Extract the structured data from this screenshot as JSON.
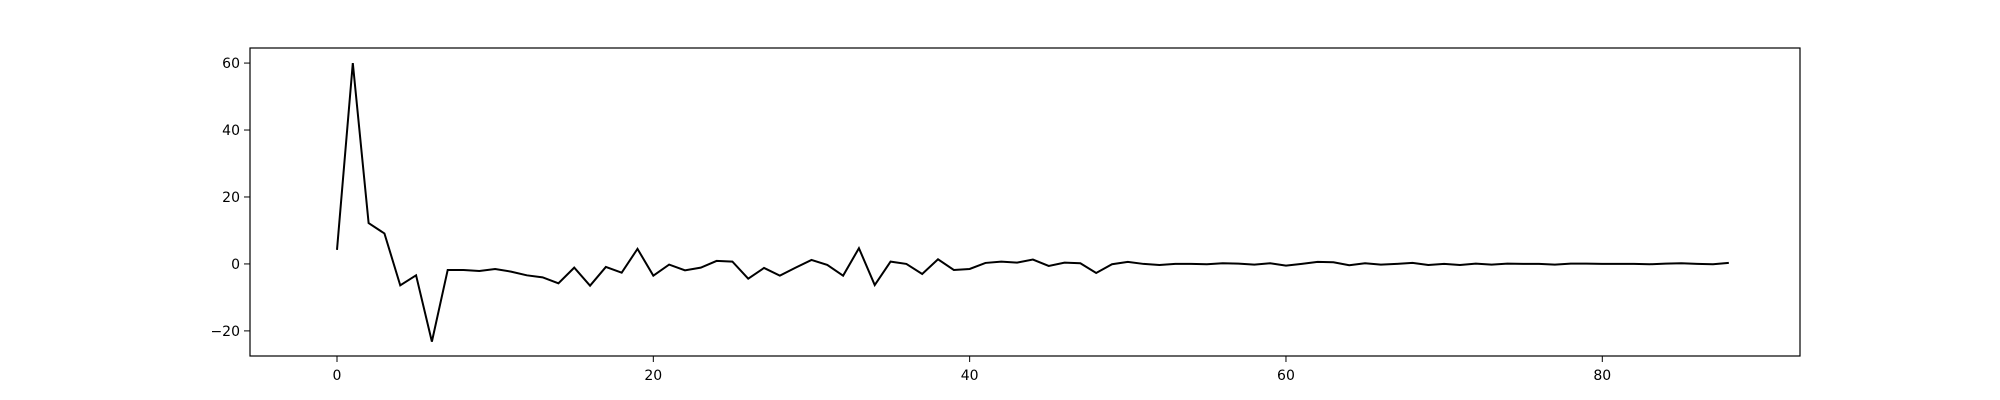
{
  "chart_data": {
    "type": "line",
    "title": "",
    "xlabel": "",
    "ylabel": "",
    "xlim": [
      -5.5,
      92.5
    ],
    "ylim": [
      -27.5,
      64.5
    ],
    "xticks": [
      0,
      20,
      40,
      60,
      80
    ],
    "yticks": [
      -20,
      0,
      20,
      40,
      60
    ],
    "grid": false,
    "legend": "none",
    "line_color": "#000000",
    "series": [
      {
        "x": [
          0,
          1,
          2,
          3,
          4,
          5,
          6,
          7,
          8,
          9,
          10,
          11,
          12,
          13,
          14,
          15,
          16,
          17,
          18,
          19,
          20,
          21,
          22,
          23,
          24,
          25,
          26,
          27,
          28,
          29,
          30,
          31,
          32,
          33,
          34,
          35,
          36,
          37,
          38,
          39,
          40,
          41,
          42,
          43,
          44,
          45,
          46,
          47,
          48,
          49,
          50,
          51,
          52,
          53,
          54,
          55,
          56,
          57,
          58,
          59,
          60,
          61,
          62,
          63,
          64,
          65,
          66,
          67,
          68,
          69,
          70,
          71,
          72,
          73,
          74,
          75,
          76,
          77,
          78,
          79,
          80,
          81,
          82,
          83,
          84,
          85,
          86,
          87,
          88
        ],
        "values": [
          4.2,
          60.0,
          12.2,
          9.1,
          -6.4,
          -3.4,
          -23.2,
          -1.8,
          -1.8,
          -2.1,
          -1.5,
          -2.3,
          -3.4,
          -4.0,
          -5.8,
          -1.1,
          -6.5,
          -0.9,
          -2.6,
          4.5,
          -3.5,
          -0.2,
          -1.9,
          -1.1,
          0.9,
          0.7,
          -4.4,
          -1.2,
          -3.5,
          -1.1,
          1.2,
          -0.3,
          -3.5,
          4.7,
          -6.3,
          0.7,
          0.0,
          -3.0,
          1.4,
          -1.8,
          -1.5,
          0.3,
          0.7,
          0.4,
          1.3,
          -0.6,
          0.4,
          0.2,
          -2.7,
          -0.1,
          0.6,
          0.0,
          -0.3,
          0.0,
          0.0,
          -0.1,
          0.2,
          0.1,
          -0.2,
          0.2,
          -0.5,
          0.0,
          0.6,
          0.5,
          -0.4,
          0.2,
          -0.2,
          0.0,
          0.3,
          -0.3,
          0.0,
          -0.3,
          0.1,
          -0.2,
          0.1,
          0.0,
          0.0,
          -0.2,
          0.1,
          0.1,
          0.0,
          0.0,
          0.0,
          -0.1,
          0.1,
          0.2,
          0.0,
          -0.1,
          0.3
        ]
      }
    ]
  }
}
